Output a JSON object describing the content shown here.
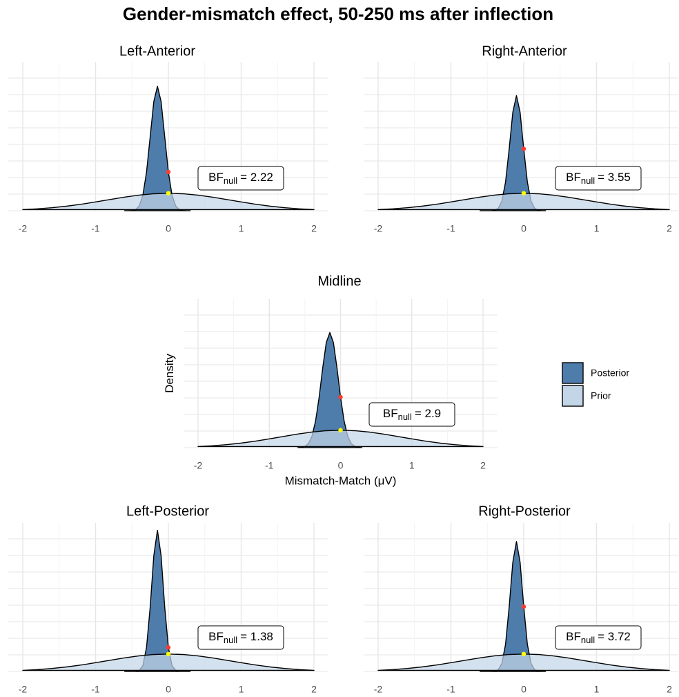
{
  "title": "Gender-mismatch effect, 50-250 ms after inflection",
  "chart_data": [
    {
      "type": "density",
      "title": "Left-Anterior",
      "xlim": [
        -2.2,
        2.2
      ],
      "ylim": [
        0,
        4
      ],
      "xticks": [
        -2,
        -1,
        0,
        1,
        2
      ],
      "grid": true,
      "series": [
        {
          "name": "Posterior",
          "color": "#4f7dab",
          "x": [
            -0.6,
            -0.55,
            -0.5,
            -0.45,
            -0.4,
            -0.35,
            -0.3,
            -0.25,
            -0.2,
            -0.15,
            -0.1,
            -0.05,
            0,
            0.05,
            0.1,
            0.15,
            0.2,
            0.25,
            0.3
          ],
          "values": [
            0,
            0,
            0.006,
            0.031,
            0.13,
            0.42,
            1.04,
            1.99,
            2.94,
            3.35,
            2.94,
            1.99,
            1.041,
            0.42,
            0.13,
            0.031,
            0.006,
            0,
            0
          ]
        },
        {
          "name": "Prior",
          "color": "#c3d6e8",
          "x": [
            -2,
            -1.8,
            -1.6,
            -1.4,
            -1.2,
            -1,
            -0.8,
            -0.6,
            -0.4,
            -0.2,
            0,
            0.2,
            0.4,
            0.6,
            0.8,
            1,
            1.2,
            1.4,
            1.6,
            1.8,
            2
          ],
          "values": [
            0.03,
            0.05,
            0.08,
            0.121,
            0.173,
            0.235,
            0.301,
            0.366,
            0.42,
            0.456,
            0.469,
            0.456,
            0.42,
            0.366,
            0.301,
            0.235,
            0.173,
            0.121,
            0.08,
            0.05,
            0.03
          ]
        }
      ],
      "markers": [
        {
          "color": "#ff3b2f",
          "x": 0,
          "y": 1.041
        },
        {
          "color": "#ffff00",
          "x": 0,
          "y": 0.469
        }
      ],
      "annotation": {
        "text": "BF",
        "subscript": "null",
        "label": "= 2.22"
      }
    },
    {
      "type": "density",
      "title": "Right-Anterior",
      "xlim": [
        -2.2,
        2.2
      ],
      "ylim": [
        0,
        4
      ],
      "xticks": [
        -2,
        -1,
        0,
        1,
        2
      ],
      "grid": true,
      "series": [
        {
          "name": "Posterior",
          "color": "#4f7dab",
          "x": [
            -0.6,
            -0.55,
            -0.5,
            -0.45,
            -0.4,
            -0.35,
            -0.3,
            -0.25,
            -0.2,
            -0.15,
            -0.1,
            -0.05,
            0,
            0.05,
            0.1,
            0.15,
            0.2,
            0.25,
            0.3
          ],
          "values": [
            0,
            0,
            0,
            0,
            0.011,
            0.064,
            0.26,
            0.77,
            1.665,
            2.65,
            3.1,
            2.65,
            1.665,
            0.77,
            0.26,
            0.064,
            0.011,
            0,
            0
          ]
        },
        {
          "name": "Prior",
          "color": "#c3d6e8",
          "x": [
            -2,
            -1.8,
            -1.6,
            -1.4,
            -1.2,
            -1,
            -0.8,
            -0.6,
            -0.4,
            -0.2,
            0,
            0.2,
            0.4,
            0.6,
            0.8,
            1,
            1.2,
            1.4,
            1.6,
            1.8,
            2
          ],
          "values": [
            0.03,
            0.05,
            0.08,
            0.121,
            0.173,
            0.235,
            0.301,
            0.366,
            0.42,
            0.456,
            0.469,
            0.456,
            0.42,
            0.366,
            0.301,
            0.235,
            0.173,
            0.121,
            0.08,
            0.05,
            0.03
          ]
        }
      ],
      "markers": [
        {
          "color": "#ff3b2f",
          "x": 0,
          "y": 1.665
        },
        {
          "color": "#ffff00",
          "x": 0,
          "y": 0.469
        }
      ],
      "annotation": {
        "text": "BF",
        "subscript": "null",
        "label": "= 3.55"
      }
    },
    {
      "type": "density",
      "title": "Midline",
      "x_label": "Mismatch-Match (μV)",
      "y_label": "Density",
      "xlim": [
        -2.2,
        2.2
      ],
      "ylim": [
        0,
        4
      ],
      "xticks": [
        -2,
        -1,
        0,
        1,
        2
      ],
      "grid": true,
      "series": [
        {
          "name": "Posterior",
          "color": "#4f7dab",
          "x": [
            -0.6,
            -0.55,
            -0.5,
            -0.45,
            -0.4,
            -0.35,
            -0.3,
            -0.25,
            -0.2,
            -0.15,
            -0.1,
            -0.05,
            0,
            0.05,
            0.1,
            0.15,
            0.2,
            0.25,
            0.3
          ],
          "values": [
            0.002,
            0.009,
            0.035,
            0.11,
            0.31,
            0.72,
            1.36,
            2.15,
            2.83,
            3.1,
            2.83,
            2.15,
            1.36,
            0.72,
            0.31,
            0.11,
            0.035,
            0.009,
            0.002
          ]
        },
        {
          "name": "Prior",
          "color": "#c3d6e8",
          "x": [
            -2,
            -1.8,
            -1.6,
            -1.4,
            -1.2,
            -1,
            -0.8,
            -0.6,
            -0.4,
            -0.2,
            0,
            0.2,
            0.4,
            0.6,
            0.8,
            1,
            1.2,
            1.4,
            1.6,
            1.8,
            2
          ],
          "values": [
            0.03,
            0.05,
            0.08,
            0.121,
            0.173,
            0.235,
            0.301,
            0.366,
            0.42,
            0.456,
            0.469,
            0.456,
            0.42,
            0.366,
            0.301,
            0.235,
            0.173,
            0.121,
            0.08,
            0.05,
            0.03
          ]
        }
      ],
      "markers": [
        {
          "color": "#ff3b2f",
          "x": 0,
          "y": 1.36
        },
        {
          "color": "#ffff00",
          "x": 0,
          "y": 0.469
        }
      ],
      "annotation": {
        "text": "BF",
        "subscript": "null",
        "label": "= 2.9"
      }
    },
    {
      "type": "density",
      "title": "Left-Posterior",
      "xlim": [
        -2.2,
        2.2
      ],
      "ylim": [
        0,
        4
      ],
      "xticks": [
        -2,
        -1,
        0,
        1,
        2
      ],
      "grid": true,
      "series": [
        {
          "name": "Posterior",
          "color": "#4f7dab",
          "x": [
            -0.6,
            -0.55,
            -0.5,
            -0.45,
            -0.4,
            -0.35,
            -0.3,
            -0.25,
            -0.2,
            -0.15,
            -0.1,
            -0.05,
            0,
            0.05,
            0.1,
            0.15,
            0.2,
            0.25,
            0.3
          ],
          "values": [
            0,
            0,
            0,
            0.003,
            0.028,
            0.16,
            0.647,
            1.73,
            3.12,
            3.8,
            3.12,
            1.73,
            0.647,
            0.16,
            0.028,
            0.003,
            0,
            0,
            0
          ]
        },
        {
          "name": "Prior",
          "color": "#c3d6e8",
          "x": [
            -2,
            -1.8,
            -1.6,
            -1.4,
            -1.2,
            -1,
            -0.8,
            -0.6,
            -0.4,
            -0.2,
            0,
            0.2,
            0.4,
            0.6,
            0.8,
            1,
            1.2,
            1.4,
            1.6,
            1.8,
            2
          ],
          "values": [
            0.03,
            0.05,
            0.08,
            0.121,
            0.173,
            0.235,
            0.301,
            0.366,
            0.42,
            0.456,
            0.469,
            0.456,
            0.42,
            0.366,
            0.301,
            0.235,
            0.173,
            0.121,
            0.08,
            0.05,
            0.03
          ]
        }
      ],
      "markers": [
        {
          "color": "#ff3b2f",
          "x": 0,
          "y": 0.647
        },
        {
          "color": "#ffff00",
          "x": 0,
          "y": 0.469
        }
      ],
      "annotation": {
        "text": "BF",
        "subscript": "null",
        "label": "= 1.38"
      }
    },
    {
      "type": "density",
      "title": "Right-Posterior",
      "xlim": [
        -2.2,
        2.2
      ],
      "ylim": [
        0,
        4
      ],
      "xticks": [
        -2,
        -1,
        0,
        1,
        2
      ],
      "grid": true,
      "series": [
        {
          "name": "Posterior",
          "color": "#4f7dab",
          "x": [
            -0.6,
            -0.55,
            -0.5,
            -0.45,
            -0.4,
            -0.35,
            -0.3,
            -0.25,
            -0.2,
            -0.15,
            -0.1,
            -0.05,
            0,
            0.05,
            0.1,
            0.15,
            0.2,
            0.25,
            0.3
          ],
          "values": [
            0,
            0,
            0,
            0,
            0.007,
            0.045,
            0.22,
            0.73,
            1.745,
            2.94,
            3.5,
            2.94,
            1.745,
            0.73,
            0.22,
            0.045,
            0.007,
            0,
            0
          ]
        },
        {
          "name": "Prior",
          "color": "#c3d6e8",
          "x": [
            -2,
            -1.8,
            -1.6,
            -1.4,
            -1.2,
            -1,
            -0.8,
            -0.6,
            -0.4,
            -0.2,
            0,
            0.2,
            0.4,
            0.6,
            0.8,
            1,
            1.2,
            1.4,
            1.6,
            1.8,
            2
          ],
          "values": [
            0.03,
            0.05,
            0.08,
            0.121,
            0.173,
            0.235,
            0.301,
            0.366,
            0.42,
            0.456,
            0.469,
            0.456,
            0.42,
            0.366,
            0.301,
            0.235,
            0.173,
            0.121,
            0.08,
            0.05,
            0.03
          ]
        }
      ],
      "markers": [
        {
          "color": "#ff3b2f",
          "x": 0,
          "y": 1.745
        },
        {
          "color": "#ffff00",
          "x": 0,
          "y": 0.469
        }
      ],
      "annotation": {
        "text": "BF",
        "subscript": "null",
        "label": "= 3.72"
      }
    }
  ]
}
